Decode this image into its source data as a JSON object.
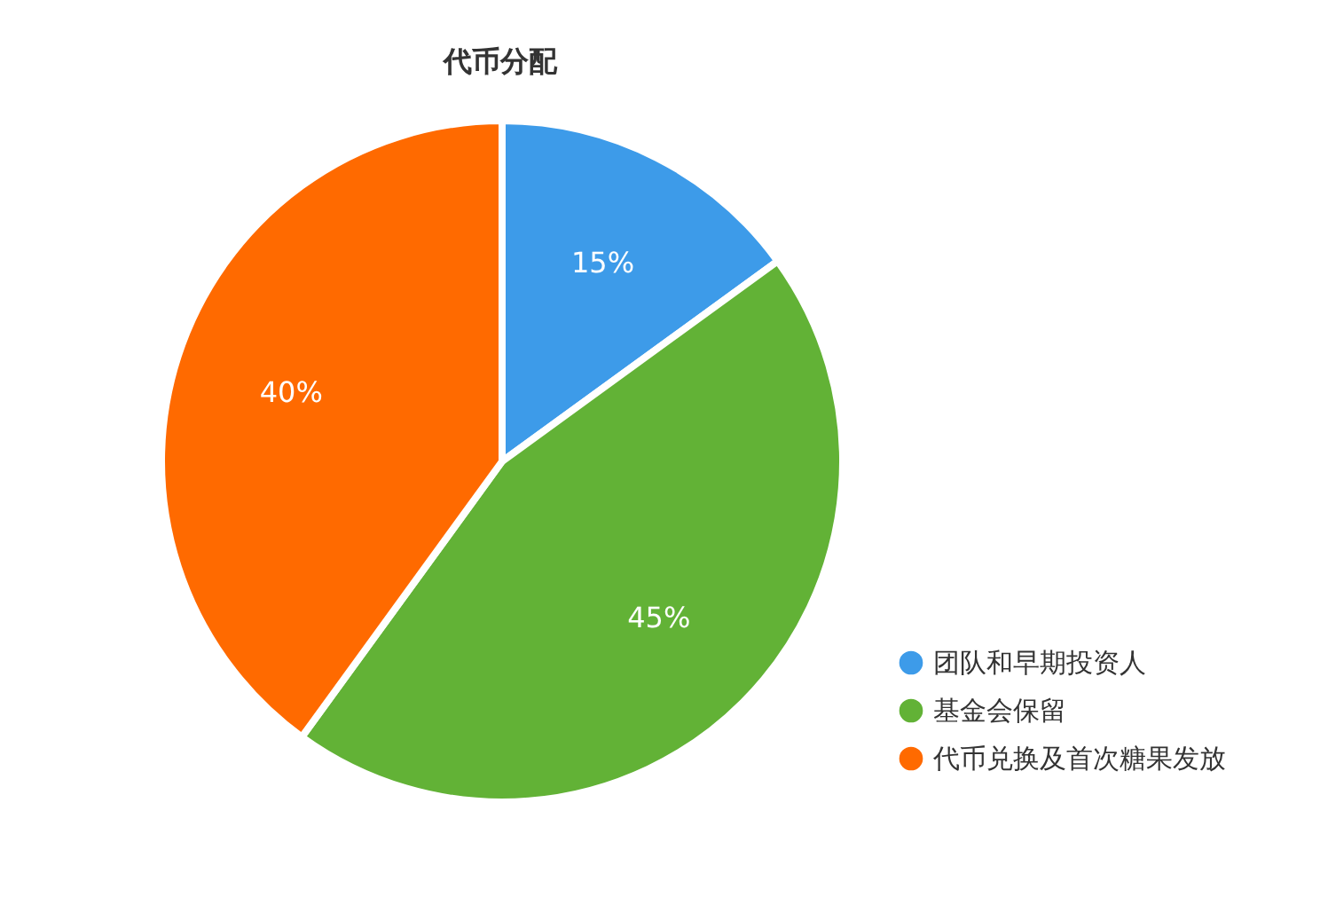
{
  "chart_data": {
    "type": "pie",
    "title": "代币分配",
    "categories": [
      "团队和早期投资人",
      "基金会保留",
      "代币兑换及首次糖果发放"
    ],
    "values": [
      15,
      45,
      40
    ],
    "colors": [
      "#3d9be9",
      "#62b236",
      "#ff6a00"
    ],
    "value_labels": [
      "15%",
      "45%",
      "40%"
    ],
    "legend": "bottom right"
  }
}
